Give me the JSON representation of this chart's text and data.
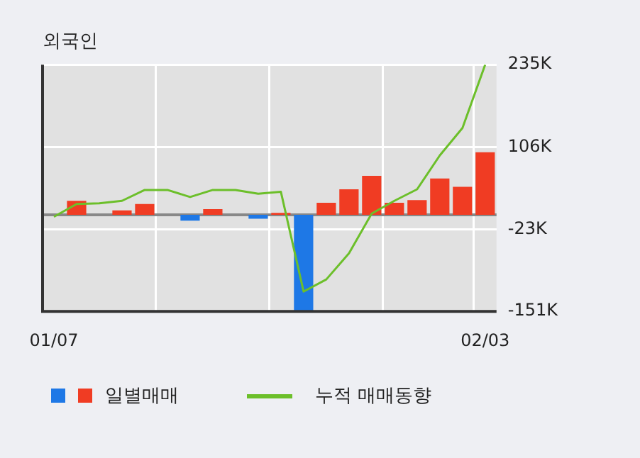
{
  "chart_data": {
    "type": "bar",
    "title": "외국인",
    "categories": [
      "01/07",
      null,
      null,
      null,
      null,
      null,
      null,
      null,
      null,
      null,
      null,
      null,
      null,
      null,
      null,
      null,
      null,
      null,
      null,
      "02/03"
    ],
    "series": [
      {
        "name": "일별매매",
        "color": "#f03c23",
        "colors": [
          "#f03c23",
          "#f03c23",
          "#f03c23",
          "#f03c23",
          "#f03c23",
          "#f03c23",
          "#1e78e6",
          "#f03c23",
          "#f03c23",
          "#1e78e6",
          "#f03c23",
          "#1e78e6",
          "#f03c23",
          "#f03c23",
          "#f03c23",
          "#f03c23",
          "#f03c23",
          "#f03c23",
          "#f03c23",
          "#f03c23"
        ],
        "values": [
          null,
          22,
          null,
          7,
          17,
          null,
          -9,
          9,
          null,
          -6,
          3,
          -150,
          19,
          40,
          61,
          19,
          23,
          57,
          44,
          98
        ]
      },
      {
        "name": "누적 매매동향",
        "type": "line",
        "color": "#6cbf2a",
        "values": [
          -3,
          17,
          18,
          22,
          39,
          39,
          28,
          39,
          39,
          33,
          36,
          -120,
          -101,
          -60,
          2,
          22,
          40,
          93,
          136,
          235
        ]
      }
    ],
    "ylim": [
      -151,
      235
    ],
    "yticks": [
      {
        "value": -151,
        "label": "-151K"
      },
      {
        "value": -23,
        "label": "-23K"
      },
      {
        "value": 106,
        "label": "106K"
      },
      {
        "value": 235,
        "label": "235K"
      }
    ],
    "grid": true,
    "legend": "bottom",
    "marker": "none",
    "line_style": "solid",
    "ref_lines": [
      {
        "axis": "y",
        "value": 0,
        "color": "#888888"
      }
    ]
  }
}
